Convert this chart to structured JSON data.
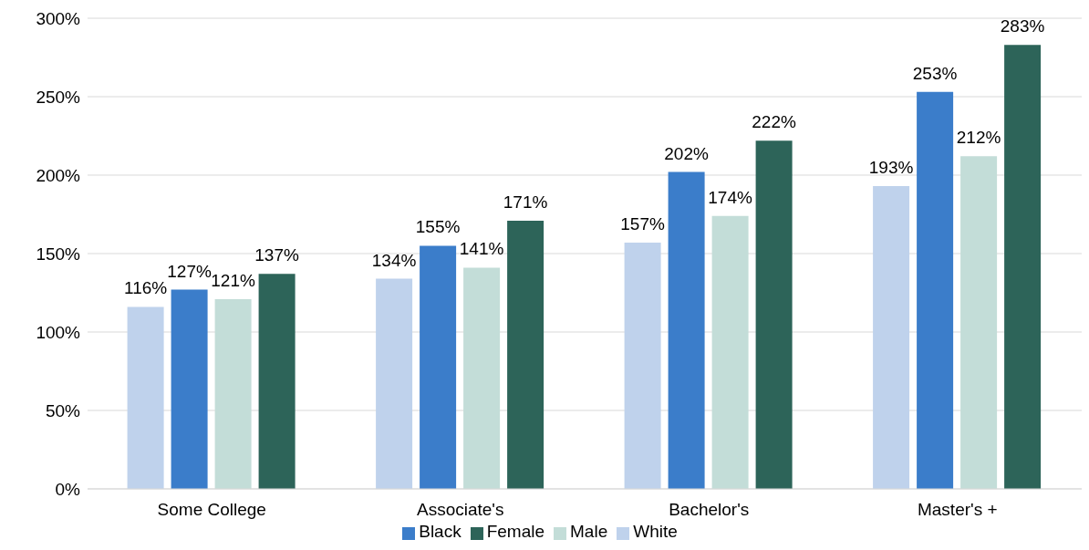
{
  "chart_data": {
    "type": "bar",
    "categories": [
      "Some College",
      "Associate's",
      "Bachelor's",
      "Master's +"
    ],
    "series": [
      {
        "name": "White",
        "color": "#bfd2ec",
        "values": [
          116,
          134,
          157,
          193
        ],
        "value_labels": [
          "116%",
          "134%",
          "157%",
          "193%"
        ]
      },
      {
        "name": "Black",
        "color": "#3b7dca",
        "values": [
          127,
          155,
          202,
          253
        ],
        "value_labels": [
          "127%",
          "155%",
          "202%",
          "253%"
        ]
      },
      {
        "name": "Male",
        "color": "#c3ddd8",
        "values": [
          121,
          141,
          174,
          212
        ],
        "value_labels": [
          "121%",
          "141%",
          "174%",
          "212%"
        ]
      },
      {
        "name": "Female",
        "color": "#2d6459",
        "values": [
          137,
          171,
          222,
          283
        ],
        "value_labels": [
          "137%",
          "171%",
          "222%",
          "283%"
        ]
      }
    ],
    "ylim": [
      0,
      300
    ],
    "yticks": [
      {
        "value": 0,
        "label": "0%"
      },
      {
        "value": 50,
        "label": "50%"
      },
      {
        "value": 100,
        "label": "100%"
      },
      {
        "value": 150,
        "label": "150%"
      },
      {
        "value": 200,
        "label": "200%"
      },
      {
        "value": 250,
        "label": "250%"
      },
      {
        "value": 300,
        "label": "300%"
      }
    ],
    "grid": "y",
    "legend": "bottom"
  }
}
